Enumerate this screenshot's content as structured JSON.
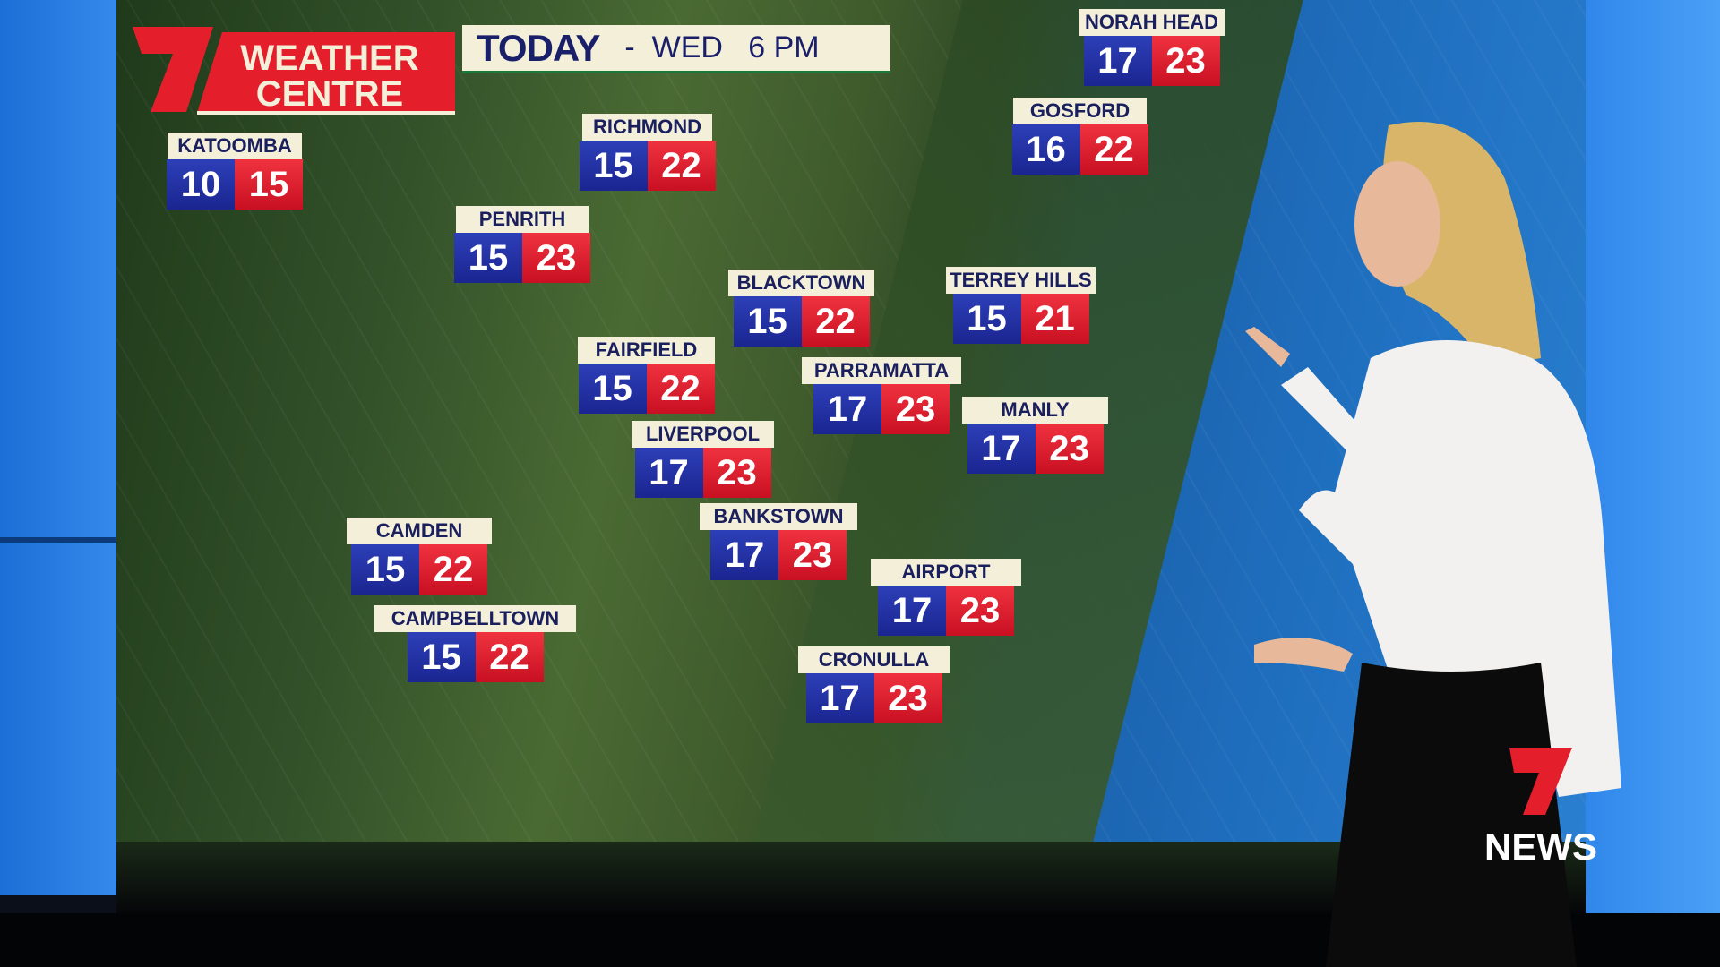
{
  "header": {
    "brand_line1": "WEATHER",
    "brand_line2": "CENTRE",
    "title": "TODAY",
    "subtitle": "-  WED   6 PM"
  },
  "stations": [
    {
      "name": "KATOOMBA",
      "min": "10",
      "max": "15"
    },
    {
      "name": "RICHMOND",
      "min": "15",
      "max": "22"
    },
    {
      "name": "PENRITH",
      "min": "15",
      "max": "23"
    },
    {
      "name": "BLACKTOWN",
      "min": "15",
      "max": "22"
    },
    {
      "name": "TERREY HILLS",
      "min": "15",
      "max": "21"
    },
    {
      "name": "FAIRFIELD",
      "min": "15",
      "max": "22"
    },
    {
      "name": "PARRAMATTA",
      "min": "17",
      "max": "23"
    },
    {
      "name": "MANLY",
      "min": "17",
      "max": "23"
    },
    {
      "name": "LIVERPOOL",
      "min": "17",
      "max": "23"
    },
    {
      "name": "BANKSTOWN",
      "min": "17",
      "max": "23"
    },
    {
      "name": "CAMDEN",
      "min": "15",
      "max": "22"
    },
    {
      "name": "AIRPORT",
      "min": "17",
      "max": "23"
    },
    {
      "name": "CAMPBELLTOWN",
      "min": "15",
      "max": "22"
    },
    {
      "name": "CRONULLA",
      "min": "17",
      "max": "23"
    },
    {
      "name": "NORAH HEAD",
      "min": "17",
      "max": "23"
    },
    {
      "name": "GOSFORD",
      "min": "16",
      "max": "22"
    }
  ],
  "watermark": {
    "text": "NEWS"
  },
  "colors": {
    "min": "#1a2590",
    "max": "#e0182a",
    "label_bg": "#f4efd9",
    "brand_red": "#e41e2b"
  }
}
